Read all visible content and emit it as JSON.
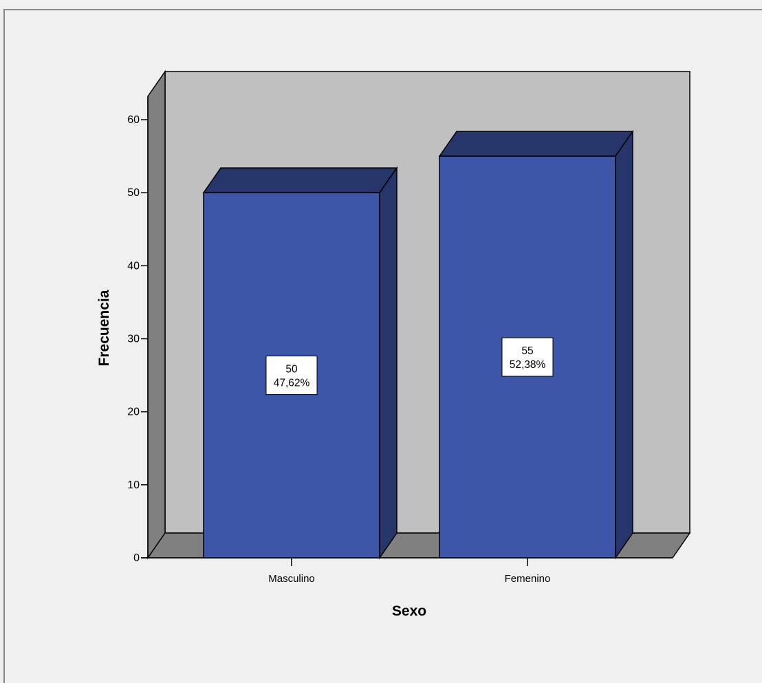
{
  "chart_data": {
    "type": "bar",
    "style": "3d",
    "categories": [
      "Masculino",
      "Femenino"
    ],
    "values": [
      50,
      55
    ],
    "data_labels": [
      {
        "count": "50",
        "percent": "47,62%"
      },
      {
        "count": "55",
        "percent": "52,38%"
      }
    ],
    "xlabel": "Sexo",
    "ylabel": "Frecuencia",
    "ylim": [
      0,
      60
    ],
    "yticks": [
      0,
      10,
      20,
      30,
      40,
      50,
      60
    ],
    "ytick_labels": [
      "0",
      "10",
      "20",
      "30",
      "40",
      "50",
      "60"
    ],
    "grid": false,
    "legend": "none",
    "colors": {
      "bar_front": "#3d56a8",
      "bar_side": "#26366a",
      "bar_top": "#26366a",
      "back_wall": "#c0c0c0",
      "floor": "#808080",
      "left_wall": "#808080",
      "page_bg": "#f0f0f0"
    }
  }
}
